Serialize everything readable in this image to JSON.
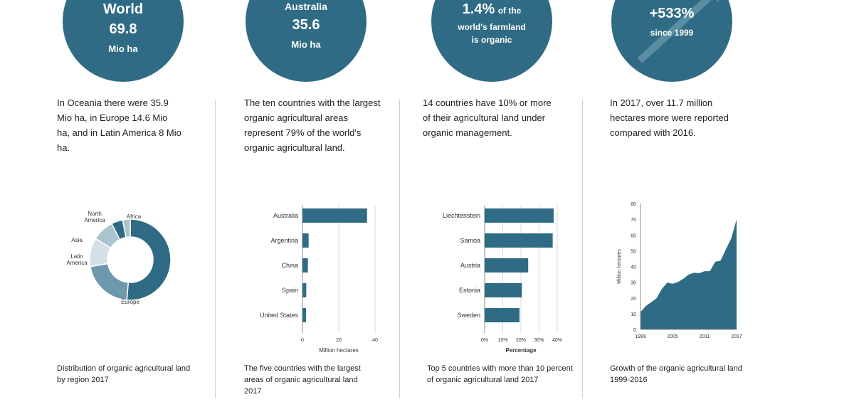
{
  "colors": {
    "primary": "#2f6b84",
    "mid": "#6e98ab",
    "light": "#a9c3cf",
    "pale": "#d3e1e7"
  },
  "panels": [
    {
      "circle": [
        "World",
        "69.8",
        "Mio ha"
      ],
      "text": "In Oceania there were 35.9 Mio ha, in Europe 14.6 Mio ha, and in Latin America 8 Mio ha.",
      "caption": "Distribution of organic agricultural land by region 2017"
    },
    {
      "circle": [
        "Australia",
        "35.6",
        "Mio ha"
      ],
      "text": "The ten countries with the largest organic agricultural areas represent 79% of the world's organic agricultural land.",
      "caption": "The five countries with the largest areas of organic agricultural land 2017"
    },
    {
      "circle": [
        "1.4%",
        "of the",
        "world's farmland",
        "is organic"
      ],
      "text": "14 countries have 10% or more of their agricultural land under organic management.",
      "caption": "Top 5 countries with more than 10 percent of organic agricultural land 2017"
    },
    {
      "circle": [
        "+533%",
        "since 1999"
      ],
      "text": "In 2017, over 11.7 million hectares more were reported compared with 2016.",
      "caption": "Growth of the organic agricultural land 1999-2016"
    }
  ],
  "chart_data": [
    {
      "type": "pie",
      "variant": "donut",
      "categories": [
        "Oceania",
        "Europe",
        "Latin America",
        "Asia",
        "North America",
        "Africa"
      ],
      "values": [
        35.9,
        14.6,
        8.0,
        6.1,
        3.2,
        2.1
      ],
      "labels": [
        "Oceania",
        "Europe",
        "Latin America",
        "Asia",
        "North America",
        "Africa"
      ]
    },
    {
      "type": "bar",
      "orientation": "horizontal",
      "categories": [
        "Australia",
        "Argentina",
        "China",
        "Spain",
        "United States"
      ],
      "values": [
        35.6,
        3.4,
        3.0,
        2.1,
        2.0
      ],
      "xlabel": "Million hectares",
      "xlim": [
        0,
        40
      ],
      "xticks": [
        "0",
        "20",
        "40"
      ],
      "grid": true
    },
    {
      "type": "bar",
      "orientation": "horizontal",
      "categories": [
        "Liechtenstein",
        "Samoa",
        "Austria",
        "Estonia",
        "Sweden"
      ],
      "values": [
        38,
        37.5,
        24,
        20.5,
        19.2
      ],
      "xlabel": "Percentage",
      "xlim": [
        0,
        40
      ],
      "xticks": [
        "0%",
        "10%",
        "20%",
        "30%",
        "40%"
      ],
      "grid": true
    },
    {
      "type": "area",
      "x": [
        1999,
        2000,
        2001,
        2002,
        2003,
        2004,
        2005,
        2006,
        2007,
        2008,
        2009,
        2010,
        2011,
        2012,
        2013,
        2014,
        2015,
        2016,
        2017
      ],
      "values": [
        11,
        14.9,
        17.3,
        19.8,
        25.7,
        29.8,
        29.0,
        30.1,
        32.1,
        34.8,
        36.0,
        35.7,
        37.0,
        37.0,
        43.0,
        43.7,
        50.9,
        57.8,
        69.8
      ],
      "ylabel": "Million hectares",
      "ylim": [
        0,
        80
      ],
      "yticks": [
        "0",
        "10",
        "20",
        "30",
        "40",
        "50",
        "60",
        "70",
        "80"
      ],
      "xticks": [
        "1999",
        "2005",
        "2011",
        "2017"
      ]
    }
  ]
}
